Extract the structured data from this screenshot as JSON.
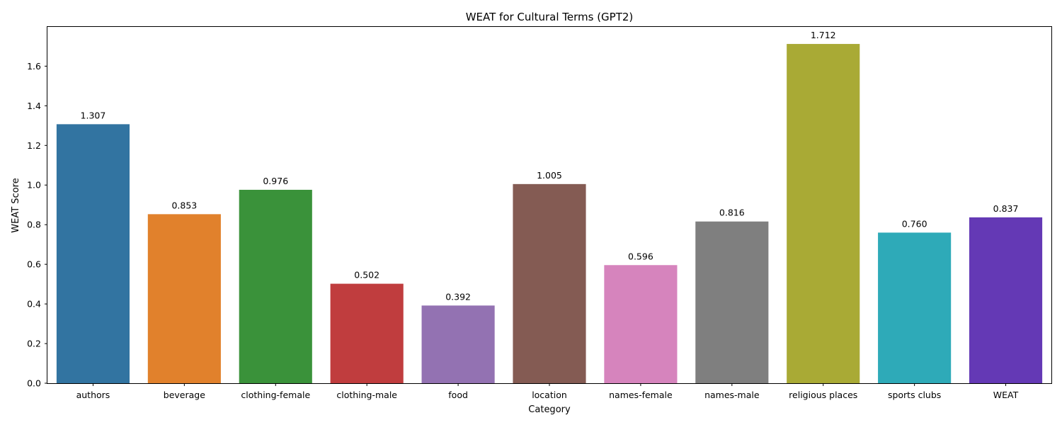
{
  "chart_data": {
    "type": "bar",
    "title": "WEAT for Cultural Terms (GPT2)",
    "xlabel": "Category",
    "ylabel": "WEAT Score",
    "categories": [
      "authors",
      "beverage",
      "clothing-female",
      "clothing-male",
      "food",
      "location",
      "names-female",
      "names-male",
      "religious places",
      "sports clubs",
      "WEAT"
    ],
    "values": [
      1.307,
      0.853,
      0.976,
      0.502,
      0.392,
      1.005,
      0.596,
      0.816,
      1.712,
      0.76,
      0.837
    ],
    "value_labels": [
      "1.307",
      "0.853",
      "0.976",
      "0.502",
      "0.392",
      "1.005",
      "0.596",
      "0.816",
      "1.712",
      "0.760",
      "0.837"
    ],
    "colors": [
      "#3274a1",
      "#e1812c",
      "#3a923a",
      "#c03d3e",
      "#9372b2",
      "#845b53",
      "#d684bd",
      "#7f7f7f",
      "#a9aa35",
      "#2eaab8",
      "#6439b5"
    ],
    "ylim": [
      0,
      1.798
    ],
    "yticks": [
      "0.0",
      "0.2",
      "0.4",
      "0.6",
      "0.8",
      "1.0",
      "1.2",
      "1.4",
      "1.6"
    ],
    "grid": false,
    "legend": "none"
  }
}
